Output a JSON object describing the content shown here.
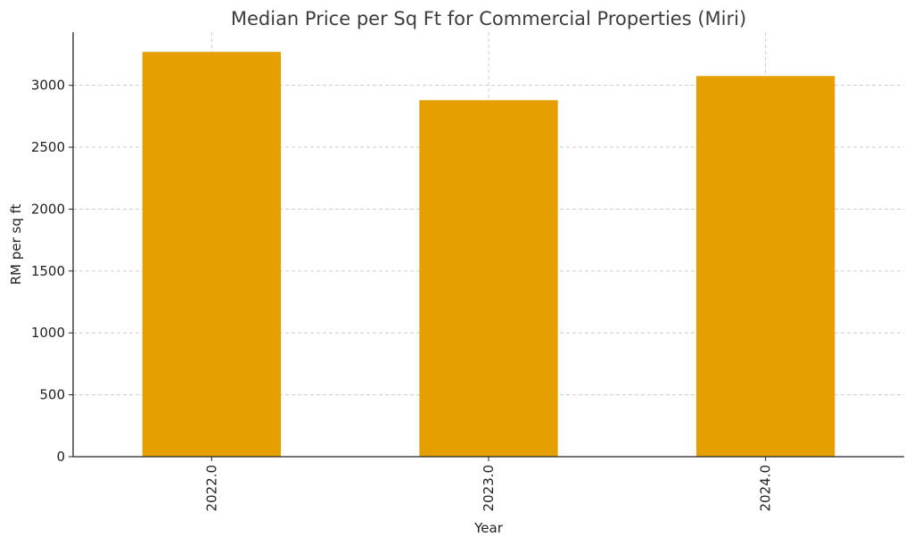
{
  "chart_data": {
    "type": "bar",
    "title": "Median Price per Sq Ft for Commercial Properties (Miri)",
    "xlabel": "Year",
    "ylabel": "RM per sq ft",
    "categories": [
      "2022.0",
      "2023.0",
      "2024.0"
    ],
    "values": [
      3270,
      2880,
      3075
    ],
    "ylim": [
      0,
      3430
    ],
    "yticks": [
      0,
      500,
      1000,
      1500,
      2000,
      2500,
      3000
    ],
    "ytick_labels": [
      "0",
      "500",
      "1000",
      "1500",
      "2000",
      "2500",
      "3000"
    ],
    "grid": true,
    "bar_color": "#E5A000",
    "tick_label_rotation": "vertical"
  }
}
